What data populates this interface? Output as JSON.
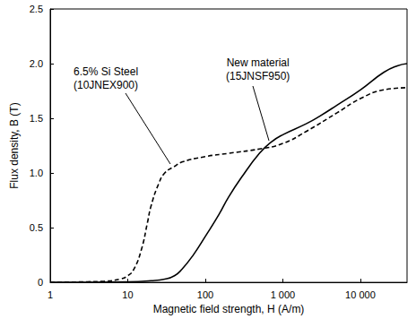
{
  "chart_data": {
    "type": "line",
    "x_label": "Magnetic field strength, H (A/m)",
    "y_label": "Flux density, B (T)",
    "log": "x",
    "grid": false,
    "xlim": [
      1,
      40000
    ],
    "xticks": [
      1,
      10,
      100,
      {
        "value": 1000,
        "label": "1 000"
      },
      {
        "value": 10000,
        "label": "10 000"
      }
    ],
    "ylim": [
      0,
      2.5
    ],
    "yticks": [
      0,
      0.5,
      {
        "value": 1,
        "label": "1.0"
      },
      1.5,
      {
        "value": 2,
        "label": "2.0"
      },
      2.5
    ],
    "series": [
      {
        "name": "6.5% Si Steel (10JNEX900)",
        "color": "#000000",
        "line_style": "dashed",
        "x": [
          1,
          3,
          5,
          8,
          10,
          12,
          15,
          18,
          20,
          25,
          30,
          40,
          50,
          100,
          200,
          500,
          1000,
          2000,
          5000,
          10000,
          20000,
          40000
        ],
        "values": [
          0,
          0.005,
          0.01,
          0.03,
          0.06,
          0.12,
          0.3,
          0.55,
          0.7,
          0.9,
          1.0,
          1.06,
          1.1,
          1.15,
          1.18,
          1.22,
          1.27,
          1.38,
          1.55,
          1.68,
          1.76,
          1.78
        ]
      },
      {
        "name": "New material (15JNSF950)",
        "color": "#000000",
        "line_style": "solid",
        "x": [
          1,
          10,
          20,
          30,
          40,
          50,
          70,
          100,
          150,
          200,
          300,
          500,
          700,
          1000,
          2000,
          3000,
          5000,
          10000,
          20000,
          30000,
          40000
        ],
        "values": [
          0,
          0.005,
          0.015,
          0.03,
          0.06,
          0.12,
          0.25,
          0.42,
          0.62,
          0.78,
          0.97,
          1.18,
          1.28,
          1.35,
          1.45,
          1.52,
          1.62,
          1.76,
          1.92,
          1.98,
          2.0
        ]
      }
    ]
  }
}
